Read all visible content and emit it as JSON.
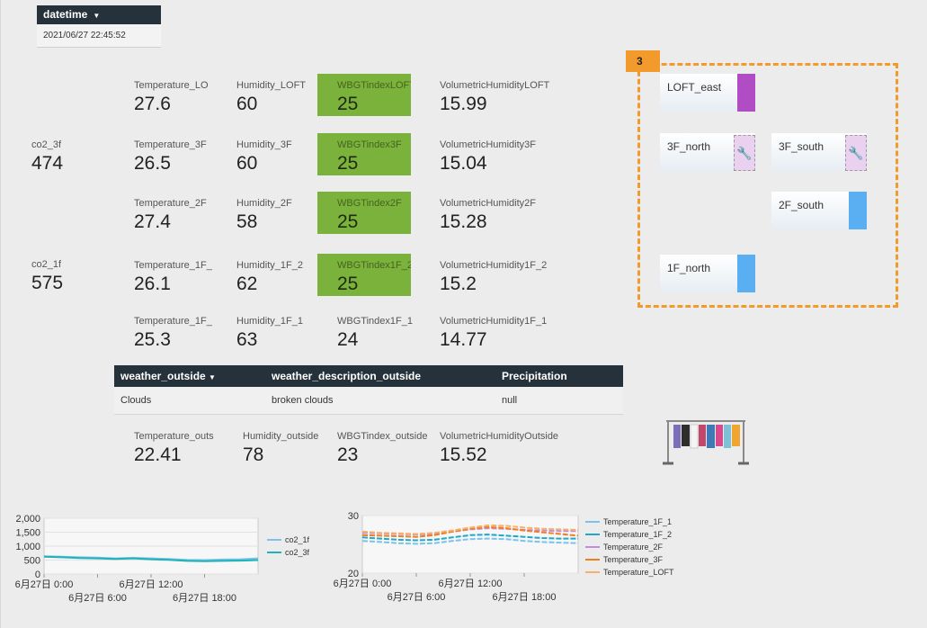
{
  "datetime": {
    "label": "datetime",
    "value": "2021/06/27 22:45:52"
  },
  "co2": [
    {
      "label": "co2_3f",
      "value": "474"
    },
    {
      "label": "co2_1f",
      "value": "575"
    }
  ],
  "metrics": {
    "loft": [
      {
        "label": "Temperature_LO",
        "value": "27.6"
      },
      {
        "label": "Humidity_LOFT",
        "value": "60"
      },
      {
        "label": "WBGTindexLOFT",
        "value": "25"
      },
      {
        "label": "VolumetricHumidityLOFT",
        "value": "15.99"
      }
    ],
    "f3": [
      {
        "label": "Temperature_3F",
        "value": "26.5"
      },
      {
        "label": "Humidity_3F",
        "value": "60"
      },
      {
        "label": "WBGTindex3F",
        "value": "25"
      },
      {
        "label": "VolumetricHumidity3F",
        "value": "15.04"
      }
    ],
    "f2": [
      {
        "label": "Temperature_2F",
        "value": "27.4"
      },
      {
        "label": "Humidity_2F",
        "value": "58"
      },
      {
        "label": "WBGTindex2F",
        "value": "25"
      },
      {
        "label": "VolumetricHumidity2F",
        "value": "15.28"
      }
    ],
    "f1_2": [
      {
        "label": "Temperature_1F_",
        "value": "26.1"
      },
      {
        "label": "Humidity_1F_2",
        "value": "62"
      },
      {
        "label": "WBGTindex1F_2",
        "value": "25"
      },
      {
        "label": "VolumetricHumidity1F_2",
        "value": "15.2"
      }
    ],
    "f1_1": [
      {
        "label": "Temperature_1F_",
        "value": "25.3"
      },
      {
        "label": "Humidity_1F_1",
        "value": "63"
      },
      {
        "label": "WBGTindex1F_1",
        "value": "24"
      },
      {
        "label": "VolumetricHumidity1F_1",
        "value": "14.77"
      }
    ],
    "outside": [
      {
        "label": "Temperature_outs",
        "value": "22.41"
      },
      {
        "label": "Humidity_outside",
        "value": "78"
      },
      {
        "label": "WBGTindex_outside",
        "value": "23"
      },
      {
        "label": "VolumetricHumidityOutside",
        "value": "15.52"
      }
    ]
  },
  "weather_table": {
    "headers": [
      "weather_outside",
      "weather_description_outside",
      "Precipitation"
    ],
    "row": [
      "Clouds",
      "broken clouds",
      "null"
    ]
  },
  "floor_map": {
    "badge": "3",
    "rooms": [
      {
        "name": "LOFT_east",
        "color": "#b04cc4",
        "state": "bar"
      },
      {
        "name": "3F_north",
        "color": "#e9d1ef",
        "state": "wrench"
      },
      {
        "name": "3F_south",
        "color": "#e9d1ef",
        "state": "wrench"
      },
      {
        "name": "2F_south",
        "color": "#5aaff2",
        "state": "bar"
      },
      {
        "name": "1F_north",
        "color": "#5aaff2",
        "state": "bar"
      }
    ]
  },
  "colors": {
    "header_dark": "#26323b",
    "wbgt_green": "#7bb23c",
    "highlight_orange": "#f29b2c"
  },
  "chart_data": [
    {
      "type": "line",
      "title": "",
      "ylim": [
        0,
        2000
      ],
      "y_ticks": [
        "2,000",
        "1,500",
        "1,000",
        "500",
        "0"
      ],
      "x_ticks_top": [
        "6月27日 0:00",
        "6月27日 12:00"
      ],
      "x_ticks_bottom": [
        "6月27日 6:00",
        "6月27日 18:00"
      ],
      "x": [
        0,
        2,
        4,
        6,
        8,
        10,
        12,
        14,
        16,
        18,
        20,
        22,
        24
      ],
      "series": [
        {
          "name": "co2_1f",
          "color": "#7cc3ea",
          "values": [
            640,
            620,
            600,
            590,
            560,
            580,
            560,
            540,
            510,
            500,
            520,
            530,
            560
          ]
        },
        {
          "name": "co2_3f",
          "color": "#1fb3b9",
          "values": [
            620,
            600,
            570,
            560,
            540,
            560,
            530,
            510,
            470,
            460,
            470,
            480,
            500
          ]
        }
      ]
    },
    {
      "type": "line",
      "title": "",
      "ylim": [
        20,
        30
      ],
      "y_ticks": [
        "30",
        "20"
      ],
      "x_ticks_top": [
        "6月27日 0:00",
        "6月27日 12:00"
      ],
      "x_ticks_bottom": [
        "6月27日 6:00",
        "6月27日 18:00"
      ],
      "x": [
        0,
        2,
        4,
        6,
        8,
        10,
        12,
        14,
        16,
        18,
        20,
        22,
        24
      ],
      "series": [
        {
          "name": "Temperature_1F_1",
          "color": "#7cc3ea",
          "values": [
            25.6,
            25.4,
            25.2,
            25.1,
            25.2,
            25.6,
            25.9,
            26.0,
            25.9,
            25.6,
            25.4,
            25.3,
            25.2
          ]
        },
        {
          "name": "Temperature_1F_2",
          "color": "#1fa8c9",
          "values": [
            26.2,
            26.0,
            25.8,
            25.7,
            25.8,
            26.2,
            26.6,
            26.7,
            26.5,
            26.3,
            26.1,
            26.0,
            26.0
          ]
        },
        {
          "name": "Temperature_2F",
          "color": "#c58be0",
          "values": [
            27.0,
            26.9,
            26.8,
            26.7,
            26.8,
            27.2,
            27.6,
            27.8,
            27.7,
            27.5,
            27.4,
            27.3,
            27.3
          ]
        },
        {
          "name": "Temperature_3F",
          "color": "#f07f1d",
          "values": [
            26.6,
            26.5,
            26.4,
            26.3,
            26.6,
            27.2,
            27.7,
            28.0,
            27.8,
            27.4,
            27.1,
            26.8,
            26.5
          ]
        },
        {
          "name": "Temperature_LOFT",
          "color": "#f7b06b",
          "values": [
            27.2,
            27.0,
            26.9,
            26.8,
            27.0,
            27.4,
            27.9,
            28.3,
            28.2,
            27.9,
            27.7,
            27.6,
            27.5
          ]
        }
      ]
    }
  ]
}
